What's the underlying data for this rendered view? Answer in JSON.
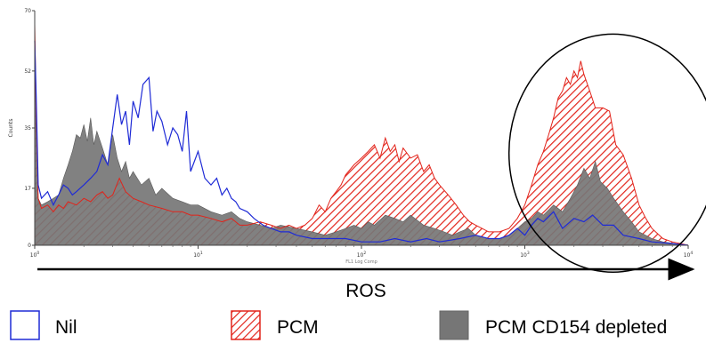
{
  "chart_data": {
    "type": "area",
    "title": "",
    "xlabel": "FL1 Log Comp",
    "ylabel": "Counts",
    "x_scale": "log",
    "xlim": [
      1,
      10000
    ],
    "ylim": [
      0,
      70
    ],
    "x_ticks": [
      {
        "value": 1,
        "base": "10",
        "exp": "0"
      },
      {
        "value": 10,
        "base": "10",
        "exp": "1"
      },
      {
        "value": 100,
        "base": "10",
        "exp": "2"
      },
      {
        "value": 1000,
        "base": "10",
        "exp": "3"
      },
      {
        "value": 10000,
        "base": "10",
        "exp": "4"
      }
    ],
    "y_ticks": [
      {
        "value": 0,
        "label": "0"
      },
      {
        "value": 17,
        "label": "17"
      },
      {
        "value": 35,
        "label": "35"
      },
      {
        "value": 52,
        "label": "52"
      },
      {
        "value": 70,
        "label": "70"
      }
    ],
    "arrow_label": "ROS",
    "annotation": "ellipse-around-peak",
    "annotation_range": {
      "x": [
        800,
        15000
      ],
      "y": [
        -8,
        63
      ]
    },
    "series": [
      {
        "name": "Nil",
        "style": "outline",
        "color": "#1f2bd6",
        "points": [
          [
            1.0,
            61
          ],
          [
            1.02,
            45
          ],
          [
            1.05,
            18
          ],
          [
            1.1,
            14
          ],
          [
            1.2,
            16
          ],
          [
            1.3,
            12
          ],
          [
            1.4,
            15
          ],
          [
            1.5,
            18
          ],
          [
            1.6,
            17
          ],
          [
            1.7,
            15
          ],
          [
            1.8,
            16
          ],
          [
            2.0,
            18
          ],
          [
            2.2,
            20
          ],
          [
            2.4,
            22
          ],
          [
            2.6,
            27
          ],
          [
            2.8,
            24
          ],
          [
            3.0,
            35
          ],
          [
            3.2,
            45
          ],
          [
            3.4,
            36
          ],
          [
            3.6,
            40
          ],
          [
            3.8,
            30
          ],
          [
            4.0,
            43
          ],
          [
            4.3,
            38
          ],
          [
            4.6,
            48
          ],
          [
            5.0,
            50
          ],
          [
            5.3,
            34
          ],
          [
            5.6,
            40
          ],
          [
            6.0,
            37
          ],
          [
            6.5,
            30
          ],
          [
            7.0,
            35
          ],
          [
            7.5,
            33
          ],
          [
            8.0,
            28
          ],
          [
            8.5,
            40
          ],
          [
            9.0,
            22
          ],
          [
            10,
            28
          ],
          [
            11,
            20
          ],
          [
            12,
            18
          ],
          [
            13,
            20
          ],
          [
            14,
            15
          ],
          [
            15,
            17
          ],
          [
            16,
            14
          ],
          [
            17,
            13
          ],
          [
            18,
            11
          ],
          [
            20,
            10
          ],
          [
            22,
            8
          ],
          [
            25,
            6
          ],
          [
            28,
            5
          ],
          [
            32,
            4
          ],
          [
            36,
            4
          ],
          [
            40,
            3
          ],
          [
            50,
            2
          ],
          [
            60,
            2
          ],
          [
            80,
            2
          ],
          [
            100,
            1
          ],
          [
            130,
            1
          ],
          [
            160,
            2
          ],
          [
            200,
            1
          ],
          [
            250,
            2
          ],
          [
            300,
            1
          ],
          [
            400,
            2
          ],
          [
            500,
            3
          ],
          [
            600,
            2
          ],
          [
            700,
            2
          ],
          [
            800,
            3
          ],
          [
            900,
            5
          ],
          [
            1000,
            3
          ],
          [
            1100,
            6
          ],
          [
            1200,
            8
          ],
          [
            1300,
            7
          ],
          [
            1500,
            10
          ],
          [
            1700,
            5
          ],
          [
            2000,
            8
          ],
          [
            2300,
            7
          ],
          [
            2600,
            9
          ],
          [
            3000,
            6
          ],
          [
            3500,
            6
          ],
          [
            4000,
            3
          ],
          [
            5000,
            2
          ],
          [
            6000,
            1
          ],
          [
            8000,
            0.5
          ],
          [
            10000,
            0
          ]
        ]
      },
      {
        "name": "PCM",
        "style": "hatched",
        "color": "#e2231a",
        "points": [
          [
            1.0,
            66
          ],
          [
            1.02,
            40
          ],
          [
            1.05,
            14
          ],
          [
            1.1,
            11
          ],
          [
            1.2,
            12
          ],
          [
            1.3,
            10
          ],
          [
            1.4,
            12
          ],
          [
            1.5,
            11
          ],
          [
            1.6,
            13
          ],
          [
            1.8,
            12
          ],
          [
            2.0,
            14
          ],
          [
            2.2,
            13
          ],
          [
            2.4,
            15
          ],
          [
            2.6,
            16
          ],
          [
            2.8,
            14
          ],
          [
            3.0,
            15
          ],
          [
            3.3,
            20
          ],
          [
            3.6,
            16
          ],
          [
            4.0,
            14
          ],
          [
            4.5,
            13
          ],
          [
            5.0,
            12
          ],
          [
            6.0,
            11
          ],
          [
            7.0,
            10
          ],
          [
            8.0,
            10
          ],
          [
            9.0,
            9
          ],
          [
            10,
            9
          ],
          [
            12,
            8
          ],
          [
            14,
            7
          ],
          [
            16,
            8
          ],
          [
            18,
            6
          ],
          [
            20,
            6
          ],
          [
            24,
            7
          ],
          [
            28,
            6
          ],
          [
            32,
            5
          ],
          [
            36,
            6
          ],
          [
            40,
            5
          ],
          [
            45,
            6
          ],
          [
            50,
            8
          ],
          [
            55,
            12
          ],
          [
            60,
            10
          ],
          [
            65,
            14
          ],
          [
            70,
            16
          ],
          [
            75,
            18
          ],
          [
            80,
            21
          ],
          [
            90,
            24
          ],
          [
            100,
            26
          ],
          [
            110,
            28
          ],
          [
            120,
            30
          ],
          [
            130,
            26
          ],
          [
            140,
            32
          ],
          [
            150,
            28
          ],
          [
            160,
            30
          ],
          [
            170,
            25
          ],
          [
            180,
            29
          ],
          [
            200,
            26
          ],
          [
            220,
            27
          ],
          [
            240,
            22
          ],
          [
            260,
            24
          ],
          [
            280,
            20
          ],
          [
            300,
            18
          ],
          [
            340,
            15
          ],
          [
            380,
            12
          ],
          [
            420,
            9
          ],
          [
            460,
            7
          ],
          [
            500,
            6
          ],
          [
            600,
            4
          ],
          [
            700,
            4
          ],
          [
            800,
            5
          ],
          [
            900,
            8
          ],
          [
            1000,
            12
          ],
          [
            1100,
            18
          ],
          [
            1200,
            24
          ],
          [
            1300,
            28
          ],
          [
            1400,
            33
          ],
          [
            1500,
            38
          ],
          [
            1600,
            44
          ],
          [
            1700,
            46
          ],
          [
            1800,
            50
          ],
          [
            1900,
            48
          ],
          [
            2000,
            52
          ],
          [
            2100,
            50
          ],
          [
            2200,
            55
          ],
          [
            2300,
            51
          ],
          [
            2500,
            46
          ],
          [
            2700,
            41
          ],
          [
            3000,
            41
          ],
          [
            3300,
            40
          ],
          [
            3600,
            30
          ],
          [
            4000,
            27
          ],
          [
            4500,
            20
          ],
          [
            5000,
            12
          ],
          [
            5500,
            8
          ],
          [
            6000,
            5
          ],
          [
            7000,
            2
          ],
          [
            8000,
            1
          ],
          [
            10000,
            0
          ]
        ]
      },
      {
        "name": "PCM CD154 depleted",
        "style": "filled",
        "color": "#767676",
        "points": [
          [
            1.0,
            63
          ],
          [
            1.02,
            35
          ],
          [
            1.05,
            14
          ],
          [
            1.1,
            12
          ],
          [
            1.2,
            13
          ],
          [
            1.3,
            14
          ],
          [
            1.4,
            15
          ],
          [
            1.5,
            20
          ],
          [
            1.6,
            24
          ],
          [
            1.7,
            28
          ],
          [
            1.8,
            33
          ],
          [
            1.9,
            32
          ],
          [
            2.0,
            36
          ],
          [
            2.1,
            31
          ],
          [
            2.2,
            38
          ],
          [
            2.3,
            30
          ],
          [
            2.4,
            34
          ],
          [
            2.6,
            29
          ],
          [
            2.8,
            24
          ],
          [
            3.0,
            33
          ],
          [
            3.2,
            26
          ],
          [
            3.4,
            22
          ],
          [
            3.6,
            25
          ],
          [
            3.8,
            20
          ],
          [
            4.0,
            22
          ],
          [
            4.5,
            18
          ],
          [
            5.0,
            20
          ],
          [
            5.5,
            15
          ],
          [
            6.0,
            17
          ],
          [
            7.0,
            14
          ],
          [
            8.0,
            13
          ],
          [
            9.0,
            12
          ],
          [
            10,
            12
          ],
          [
            12,
            10
          ],
          [
            14,
            9
          ],
          [
            16,
            10
          ],
          [
            18,
            8
          ],
          [
            20,
            7
          ],
          [
            24,
            6
          ],
          [
            28,
            5
          ],
          [
            32,
            6
          ],
          [
            40,
            5
          ],
          [
            50,
            4
          ],
          [
            60,
            3
          ],
          [
            70,
            4
          ],
          [
            80,
            5
          ],
          [
            90,
            6
          ],
          [
            100,
            5
          ],
          [
            110,
            7
          ],
          [
            120,
            6
          ],
          [
            140,
            9
          ],
          [
            160,
            8
          ],
          [
            180,
            7
          ],
          [
            200,
            9
          ],
          [
            240,
            6
          ],
          [
            280,
            5
          ],
          [
            320,
            4
          ],
          [
            360,
            3
          ],
          [
            400,
            4
          ],
          [
            450,
            5
          ],
          [
            500,
            3
          ],
          [
            600,
            2
          ],
          [
            700,
            2
          ],
          [
            800,
            3
          ],
          [
            900,
            5
          ],
          [
            1000,
            7
          ],
          [
            1100,
            8
          ],
          [
            1200,
            10
          ],
          [
            1300,
            9
          ],
          [
            1500,
            12
          ],
          [
            1700,
            10
          ],
          [
            1900,
            14
          ],
          [
            2100,
            18
          ],
          [
            2300,
            23
          ],
          [
            2500,
            20
          ],
          [
            2700,
            25
          ],
          [
            2900,
            19
          ],
          [
            3200,
            17
          ],
          [
            3500,
            14
          ],
          [
            4000,
            10
          ],
          [
            4500,
            7
          ],
          [
            5000,
            4
          ],
          [
            6000,
            2
          ],
          [
            7000,
            1
          ],
          [
            10000,
            0
          ]
        ]
      }
    ]
  }
}
